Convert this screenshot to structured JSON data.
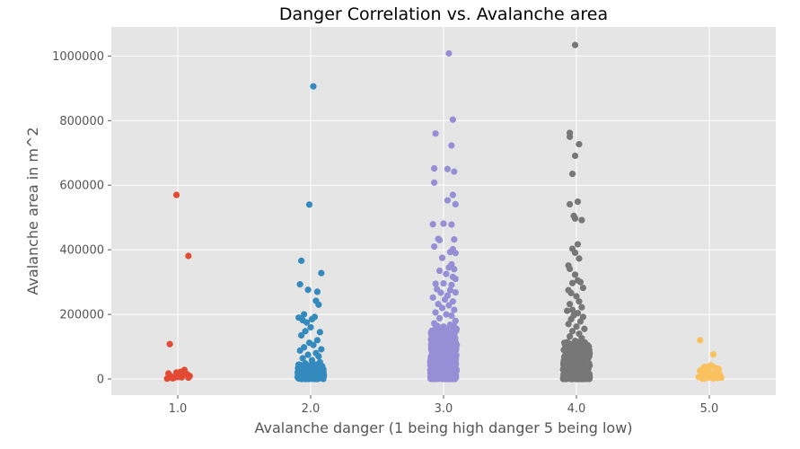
{
  "chart_data": {
    "type": "scatter",
    "title": "Danger Correlation vs. Avalanche area",
    "xlabel": "Avalanche danger (1 being high danger 5 being low)",
    "ylabel": "Avalanche area in m^2",
    "xlim": [
      0.5,
      5.5
    ],
    "ylim": [
      -50000,
      1090000
    ],
    "x_ticks": [
      1.0,
      2.0,
      3.0,
      4.0,
      5.0
    ],
    "x_tick_labels": [
      "1.0",
      "2.0",
      "3.0",
      "4.0",
      "5.0"
    ],
    "y_ticks": [
      0,
      200000,
      400000,
      600000,
      800000,
      1000000
    ],
    "y_tick_labels": [
      "0",
      "200000",
      "400000",
      "600000",
      "800000",
      "1000000"
    ],
    "grid": true,
    "background": "#E5E5E5",
    "jitter": 0.1,
    "series": [
      {
        "x": 1.0,
        "color": "#E24A33",
        "points": [
          [
            0.99,
            570000
          ],
          [
            1.08,
            381000
          ],
          [
            0.94,
            108000
          ],
          [
            0.93,
            17000
          ],
          [
            0.95,
            8000
          ],
          [
            0.97,
            3000
          ],
          [
            0.99,
            20000
          ],
          [
            1.01,
            12000
          ],
          [
            1.03,
            5000
          ],
          [
            1.05,
            28000
          ],
          [
            1.07,
            15000
          ],
          [
            1.09,
            9000
          ],
          [
            0.96,
            2000
          ],
          [
            1.0,
            6000
          ],
          [
            1.04,
            18000
          ],
          [
            1.08,
            4000
          ],
          [
            0.92,
            1000
          ],
          [
            1.02,
            22000
          ]
        ]
      },
      {
        "x": 2.0,
        "color": "#348ABD",
        "points": [
          [
            2.02,
            906000
          ],
          [
            1.99,
            540000
          ],
          [
            1.93,
            366000
          ],
          [
            2.08,
            328000
          ],
          [
            1.92,
            293000
          ],
          [
            1.98,
            276000
          ],
          [
            2.05,
            270000
          ],
          [
            2.04,
            242000
          ],
          [
            2.06,
            230000
          ],
          [
            1.95,
            200000
          ],
          [
            1.91,
            190000
          ],
          [
            1.94,
            182000
          ],
          [
            2.01,
            185000
          ],
          [
            1.97,
            175000
          ],
          [
            2.03,
            192000
          ],
          [
            2.0,
            160000
          ],
          [
            1.96,
            148000
          ],
          [
            2.07,
            145000
          ],
          [
            1.93,
            135000
          ],
          [
            2.05,
            120000
          ],
          [
            1.99,
            112000
          ],
          [
            2.02,
            105000
          ],
          [
            1.95,
            98000
          ],
          [
            2.08,
            92000
          ],
          [
            1.92,
            88000
          ],
          [
            2.04,
            80000
          ],
          [
            1.98,
            75000
          ],
          [
            2.06,
            70000
          ],
          [
            1.94,
            64000
          ],
          [
            2.01,
            58000
          ],
          [
            2.07,
            52000
          ],
          [
            1.96,
            48000
          ]
        ],
        "dense_band": {
          "min": 0,
          "max": 45000,
          "count": 180
        }
      },
      {
        "x": 3.0,
        "color": "#988ED5",
        "points": [
          [
            3.04,
            1008000
          ],
          [
            3.07,
            803000
          ],
          [
            2.94,
            760000
          ],
          [
            3.06,
            723000
          ],
          [
            2.93,
            652000
          ],
          [
            3.03,
            650000
          ],
          [
            3.08,
            642000
          ],
          [
            2.93,
            608000
          ],
          [
            3.07,
            570000
          ],
          [
            3.03,
            553000
          ],
          [
            3.09,
            541000
          ],
          [
            2.92,
            479000
          ],
          [
            3.0,
            481000
          ],
          [
            3.06,
            478000
          ],
          [
            2.96,
            434000
          ],
          [
            2.97,
            430000
          ],
          [
            3.08,
            432000
          ],
          [
            2.93,
            410000
          ],
          [
            3.07,
            402000
          ],
          [
            3.05,
            393000
          ],
          [
            3.09,
            390000
          ],
          [
            2.99,
            375000
          ],
          [
            3.06,
            355000
          ],
          [
            3.04,
            345000
          ],
          [
            3.08,
            340000
          ],
          [
            2.97,
            335000
          ],
          [
            3.02,
            325000
          ],
          [
            3.07,
            316000
          ],
          [
            3.09,
            310000
          ],
          [
            2.94,
            295000
          ],
          [
            3.0,
            296000
          ],
          [
            3.06,
            291000
          ],
          [
            2.95,
            278000
          ],
          [
            3.05,
            275000
          ],
          [
            2.98,
            267000
          ],
          [
            3.09,
            268000
          ],
          [
            3.03,
            258000
          ],
          [
            2.92,
            252000
          ],
          [
            3.01,
            246000
          ],
          [
            3.07,
            240000
          ],
          [
            2.96,
            232000
          ],
          [
            3.04,
            228000
          ],
          [
            2.99,
            220000
          ],
          [
            3.08,
            214000
          ],
          [
            2.94,
            206000
          ],
          [
            3.02,
            200000
          ],
          [
            3.06,
            196000
          ],
          [
            2.97,
            188000
          ],
          [
            3.09,
            180000
          ],
          [
            2.93,
            172000
          ],
          [
            3.05,
            168000
          ]
        ],
        "dense_band": {
          "min": 0,
          "max": 165000,
          "count": 500
        }
      },
      {
        "x": 4.0,
        "color": "#777777",
        "points": [
          [
            3.99,
            1034000
          ],
          [
            3.95,
            762000
          ],
          [
            3.95,
            750000
          ],
          [
            4.02,
            727000
          ],
          [
            3.99,
            691000
          ],
          [
            3.97,
            635000
          ],
          [
            3.95,
            541000
          ],
          [
            4.01,
            549000
          ],
          [
            3.98,
            505000
          ],
          [
            3.99,
            497000
          ],
          [
            4.04,
            492000
          ],
          [
            4.01,
            417000
          ],
          [
            3.97,
            403000
          ],
          [
            3.99,
            391000
          ],
          [
            4.02,
            373000
          ],
          [
            3.94,
            351000
          ],
          [
            3.95,
            341000
          ],
          [
            3.99,
            323000
          ],
          [
            4.01,
            305000
          ],
          [
            4.03,
            300000
          ],
          [
            3.97,
            297000
          ],
          [
            4.05,
            282000
          ],
          [
            3.94,
            275000
          ],
          [
            3.96,
            266000
          ],
          [
            4.0,
            256000
          ],
          [
            4.02,
            240000
          ],
          [
            3.95,
            232000
          ],
          [
            4.04,
            222000
          ],
          [
            3.97,
            214000
          ],
          [
            3.93,
            211000
          ],
          [
            4.01,
            204000
          ],
          [
            3.98,
            197000
          ],
          [
            4.05,
            192000
          ],
          [
            3.96,
            185000
          ],
          [
            4.03,
            178000
          ],
          [
            3.94,
            170000
          ],
          [
            4.0,
            162000
          ],
          [
            4.06,
            155000
          ],
          [
            3.97,
            148000
          ],
          [
            4.02,
            140000
          ],
          [
            3.95,
            132000
          ],
          [
            4.04,
            126000
          ],
          [
            3.99,
            118000
          ]
        ],
        "dense_band": {
          "min": 0,
          "max": 115000,
          "count": 420
        }
      },
      {
        "x": 5.0,
        "color": "#FBC15E",
        "points": [
          [
            4.93,
            120000
          ],
          [
            5.03,
            76000
          ],
          [
            5.01,
            42000
          ],
          [
            4.97,
            38000
          ],
          [
            5.05,
            34000
          ],
          [
            4.95,
            30000
          ],
          [
            4.99,
            27000
          ],
          [
            5.07,
            24000
          ],
          [
            4.94,
            21000
          ],
          [
            5.02,
            18000
          ],
          [
            4.96,
            15000
          ],
          [
            5.08,
            12000
          ],
          [
            4.98,
            10000
          ],
          [
            5.04,
            8000
          ],
          [
            4.92,
            6000
          ],
          [
            5.0,
            5000
          ],
          [
            5.06,
            3000
          ],
          [
            4.97,
            2000
          ],
          [
            5.03,
            1500
          ],
          [
            4.95,
            1000
          ],
          [
            5.09,
            4000
          ],
          [
            5.01,
            9000
          ],
          [
            4.99,
            14000
          ],
          [
            5.05,
            19000
          ],
          [
            4.93,
            25000
          ],
          [
            5.07,
            31000
          ],
          [
            4.96,
            36000
          ],
          [
            5.02,
            40000
          ]
        ]
      }
    ]
  }
}
